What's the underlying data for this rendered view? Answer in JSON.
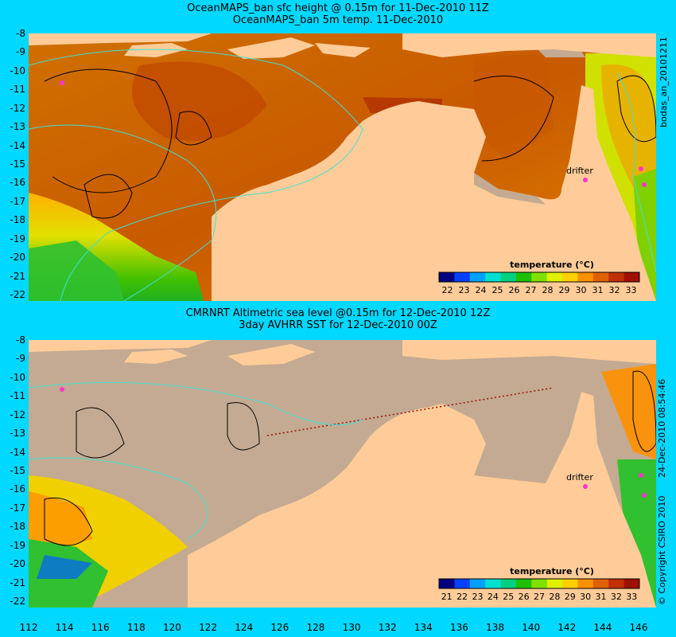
{
  "colors": {
    "background": "#00d8ff",
    "land": "#ffcc99",
    "nodata": "#c4aa92",
    "contour_cyan": "#40e0d0",
    "contour_black": "#000000",
    "drifter": "#ff33cc",
    "colorbar": [
      "#000080",
      "#0040ff",
      "#00a0ff",
      "#00e0d0",
      "#00d080",
      "#20c000",
      "#80e000",
      "#e0f000",
      "#ffd000",
      "#ff9000",
      "#e06000",
      "#c03000",
      "#a01000"
    ]
  },
  "top_panel": {
    "title1": "OceanMAPS_ban sfc height @ 0.15m for 11-Dec-2010 11Z",
    "title2": "OceanMAPS_ban 5m temp. 11-Dec-2010",
    "right_label": "bodas_an_20101211",
    "drifter_label": "drifter",
    "colorbar_title": "temperature (°C)",
    "colorbar_ticks": [
      "22",
      "23",
      "24",
      "25",
      "26",
      "27",
      "28",
      "29",
      "30",
      "31",
      "32",
      "33"
    ]
  },
  "bottom_panel": {
    "title1": "CMRNRT Altimetric sea level  @0.15m  for 12-Dec-2010 12Z",
    "title2": "3day AVHRR SST for 12-Dec-2010 00Z",
    "right_label": "24-Dec-2010 08:54:46",
    "copyright": "© Copyright CSIRO 2010",
    "drifter_label": "drifter",
    "colorbar_title": "temperature (°C)",
    "colorbar_ticks": [
      "21",
      "22",
      "23",
      "24",
      "25",
      "26",
      "27",
      "28",
      "29",
      "30",
      "31",
      "32",
      "33"
    ]
  },
  "y_labels": [
    "-8",
    "-9",
    "-10",
    "-11",
    "-12",
    "-13",
    "-14",
    "-15",
    "-16",
    "-17",
    "-18",
    "-19",
    "-20",
    "-21",
    "-22"
  ],
  "x_labels": [
    "112",
    "114",
    "116",
    "118",
    "120",
    "122",
    "124",
    "126",
    "128",
    "130",
    "132",
    "134",
    "136",
    "138",
    "140",
    "142",
    "144",
    "146"
  ]
}
